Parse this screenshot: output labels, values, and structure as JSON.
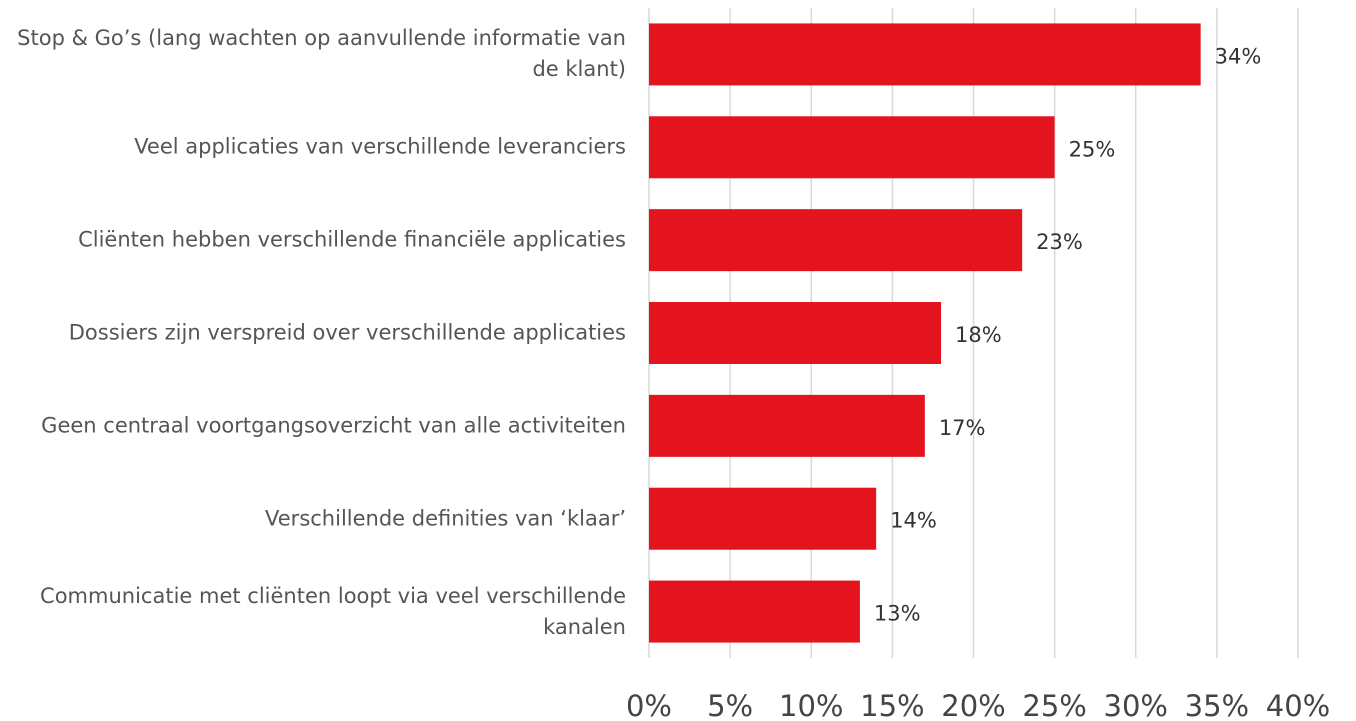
{
  "chart_data": {
    "type": "bar",
    "orientation": "horizontal",
    "categories": [
      "Stop & Go’s (lang wachten op aanvullende informatie van de klant)",
      "Veel applicaties van verschillende leveranciers",
      "Cliënten hebben verschillende financiële applicaties",
      "Dossiers zijn verspreid over verschillende applicaties",
      "Geen centraal voortgangsoverzicht van alle activiteiten",
      "Verschillende definities van ‘klaar’",
      "Communicatie met cliënten loopt via veel verschillende kanalen"
    ],
    "values": [
      34,
      25,
      23,
      18,
      17,
      14,
      13
    ],
    "value_labels": [
      "34%",
      "25%",
      "23%",
      "18%",
      "17%",
      "14%",
      "13%"
    ],
    "color": "#e3141e",
    "xlim": [
      0,
      40
    ],
    "xticks": [
      {
        "value": 0,
        "label": "0%"
      },
      {
        "value": 5,
        "label": "5%"
      },
      {
        "value": 10,
        "label": "10%"
      },
      {
        "value": 15,
        "label": "15%"
      },
      {
        "value": 20,
        "label": "20%"
      },
      {
        "value": 25,
        "label": "25%"
      },
      {
        "value": 30,
        "label": "30%"
      },
      {
        "value": 35,
        "label": "35%"
      },
      {
        "value": 40,
        "label": "40%"
      }
    ],
    "grid": true
  }
}
